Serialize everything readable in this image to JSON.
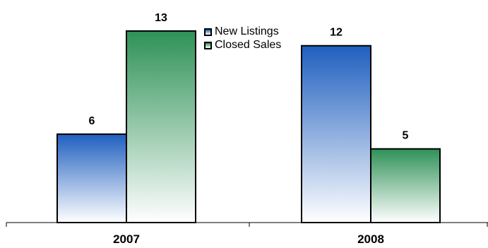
{
  "chart_data": {
    "type": "bar",
    "categories": [
      "2007",
      "2008"
    ],
    "series": [
      {
        "name": "New Listings",
        "values": [
          6,
          12
        ],
        "color_top": "#1f5fbf",
        "color_bottom": "#ffffff"
      },
      {
        "name": "Closed Sales",
        "values": [
          13,
          5
        ],
        "color_top": "#2e9157",
        "color_bottom": "#ffffff"
      }
    ],
    "data_labels": [
      "6",
      "12",
      "13",
      "5"
    ],
    "ylim": [
      0,
      14
    ],
    "grid": false,
    "legend": "top-center"
  }
}
